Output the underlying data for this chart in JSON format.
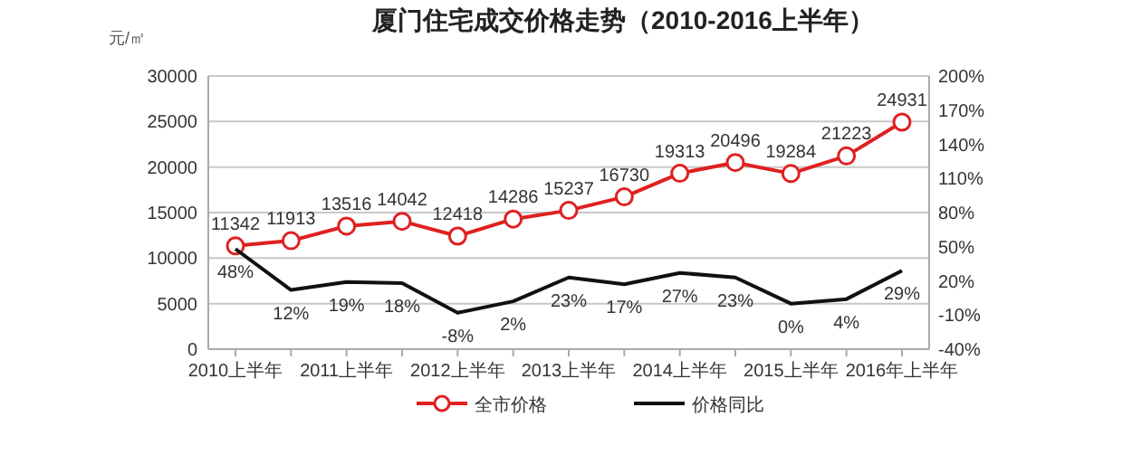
{
  "chart_data": {
    "type": "line",
    "title": "厦门住宅成交价格走势（2010-2016上半年）",
    "ylabel": "元/㎡",
    "categories": [
      "2010上半年",
      null,
      "2011上半年",
      null,
      "2012上半年",
      null,
      "2013上半年",
      null,
      "2014上半年",
      null,
      "2015上半年",
      null,
      "2016年上半年"
    ],
    "series": [
      {
        "name": "全市价格",
        "color": "#e02020",
        "marker": "circle",
        "values": [
          11342,
          11913,
          13516,
          14042,
          12418,
          14286,
          15237,
          16730,
          19313,
          20496,
          19284,
          21223,
          24931
        ],
        "value_labels": [
          "11342",
          "11913",
          "13516",
          "14042",
          "12418",
          "14286",
          "15237",
          "16730",
          "19313",
          "20496",
          "19284",
          "21223",
          "24931"
        ]
      },
      {
        "name": "价格同比",
        "color": "#111111",
        "axis": "y2",
        "marker": "none",
        "values": [
          48,
          12,
          19,
          18,
          -8,
          2,
          23,
          17,
          27,
          23,
          0,
          4,
          29
        ],
        "value_labels": [
          "48%",
          "12%",
          "19%",
          "18%",
          "-8%",
          "2%",
          "23%",
          "17%",
          "27%",
          "23%",
          "0%",
          "4%",
          "29%"
        ]
      }
    ],
    "ylim": [
      0,
      30000
    ],
    "yticks": [
      0,
      5000,
      10000,
      15000,
      20000,
      25000,
      30000
    ],
    "y2lim": [
      -40,
      200
    ],
    "y2ticks": [
      {
        "value": -40,
        "label": "-40%"
      },
      {
        "value": -10,
        "label": "-10%"
      },
      {
        "value": 20,
        "label": "20%"
      },
      {
        "value": 50,
        "label": "50%"
      },
      {
        "value": 80,
        "label": "80%"
      },
      {
        "value": 110,
        "label": "110%"
      },
      {
        "value": 140,
        "label": "140%"
      },
      {
        "value": 170,
        "label": "170%"
      },
      {
        "value": 200,
        "label": "200%"
      }
    ],
    "grid": "y",
    "legend": "bottom"
  }
}
